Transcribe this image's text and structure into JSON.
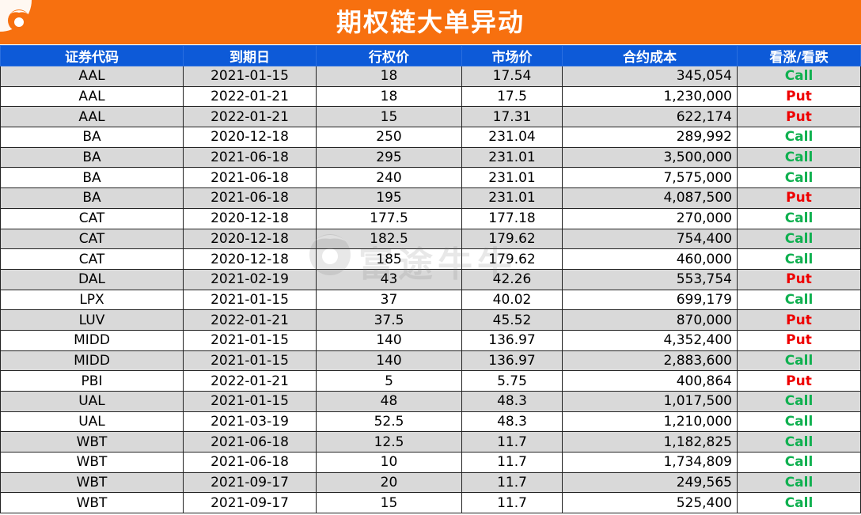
{
  "header": {
    "title": "期权链大单异动"
  },
  "colors": {
    "banner": "#f7700f",
    "header_row": "#0d5ad8",
    "call": "#10b050",
    "put": "#ee0000",
    "shade": "#d9d9d9"
  },
  "watermark": {
    "text": "富途牛牛"
  },
  "table": {
    "columns": [
      "证券代码",
      "到期日",
      "行权价",
      "市场价",
      "合约成本",
      "看涨/看跌"
    ],
    "rows": [
      [
        "AAL",
        "2021-01-15",
        "18",
        "17.54",
        "345,054",
        "Call"
      ],
      [
        "AAL",
        "2022-01-21",
        "18",
        "17.5",
        "1,230,000",
        "Put"
      ],
      [
        "AAL",
        "2022-01-21",
        "15",
        "17.31",
        "622,174",
        "Put"
      ],
      [
        "BA",
        "2020-12-18",
        "250",
        "231.04",
        "289,992",
        "Call"
      ],
      [
        "BA",
        "2021-06-18",
        "295",
        "231.01",
        "3,500,000",
        "Call"
      ],
      [
        "BA",
        "2021-06-18",
        "240",
        "231.01",
        "7,575,000",
        "Call"
      ],
      [
        "BA",
        "2021-06-18",
        "195",
        "231.01",
        "4,087,500",
        "Put"
      ],
      [
        "CAT",
        "2020-12-18",
        "177.5",
        "177.18",
        "270,000",
        "Call"
      ],
      [
        "CAT",
        "2020-12-18",
        "182.5",
        "179.62",
        "754,400",
        "Call"
      ],
      [
        "CAT",
        "2020-12-18",
        "185",
        "179.62",
        "460,000",
        "Call"
      ],
      [
        "DAL",
        "2021-02-19",
        "43",
        "42.26",
        "553,754",
        "Put"
      ],
      [
        "LPX",
        "2021-01-15",
        "37",
        "40.02",
        "699,179",
        "Call"
      ],
      [
        "LUV",
        "2022-01-21",
        "37.5",
        "45.52",
        "870,000",
        "Put"
      ],
      [
        "MIDD",
        "2021-01-15",
        "140",
        "136.97",
        "4,352,400",
        "Put"
      ],
      [
        "MIDD",
        "2021-01-15",
        "140",
        "136.97",
        "2,883,600",
        "Call"
      ],
      [
        "PBI",
        "2022-01-21",
        "5",
        "5.75",
        "400,864",
        "Put"
      ],
      [
        "UAL",
        "2021-01-15",
        "48",
        "48.3",
        "1,017,500",
        "Call"
      ],
      [
        "UAL",
        "2021-03-19",
        "52.5",
        "48.3",
        "1,210,000",
        "Call"
      ],
      [
        "WBT",
        "2021-06-18",
        "12.5",
        "11.7",
        "1,182,825",
        "Call"
      ],
      [
        "WBT",
        "2021-06-18",
        "10",
        "11.7",
        "1,734,809",
        "Call"
      ],
      [
        "WBT",
        "2021-09-17",
        "20",
        "11.7",
        "249,565",
        "Call"
      ],
      [
        "WBT",
        "2021-09-17",
        "15",
        "11.7",
        "525,400",
        "Call"
      ]
    ]
  }
}
